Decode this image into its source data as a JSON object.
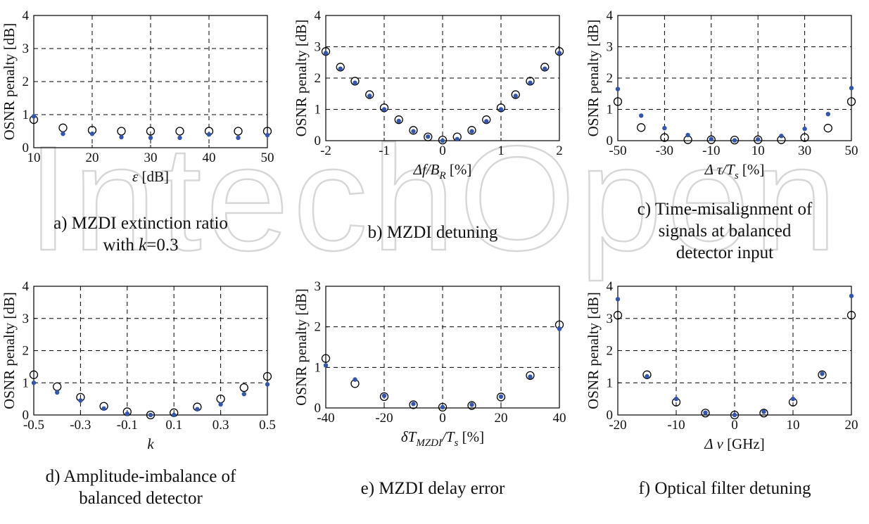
{
  "watermark_text": "IntechOpen",
  "colors": {
    "series_filled": "#3355aa",
    "series_open": "#000000",
    "grid": "#000000"
  },
  "chart_data": [
    {
      "type": "scatter",
      "panel": "a",
      "ylabel": "OSNR penalty [dB]",
      "xlabel": {
        "symbol": "ε",
        "sub": "",
        "unit": " [dB]"
      },
      "xlim": [
        10,
        50
      ],
      "ylim": [
        0,
        4
      ],
      "xticks": [
        10,
        20,
        30,
        40,
        50
      ],
      "yticks": [
        0,
        1,
        2,
        3,
        4
      ],
      "grid": true,
      "series": [
        {
          "marker": "open-circle",
          "x": [
            10,
            15,
            20,
            25,
            30,
            35,
            40,
            45,
            50
          ],
          "y": [
            0.85,
            0.6,
            0.53,
            0.5,
            0.5,
            0.5,
            0.5,
            0.5,
            0.5
          ]
        },
        {
          "marker": "filled-dot",
          "x": [
            10,
            15,
            20,
            25,
            30,
            35,
            40,
            45,
            50
          ],
          "y": [
            0.95,
            0.42,
            0.42,
            0.32,
            0.3,
            0.3,
            0.4,
            0.3,
            0.38
          ]
        }
      ],
      "caption_lines": [
        "a) MZDI extinction ratio",
        "with k=0.3"
      ]
    },
    {
      "type": "scatter",
      "panel": "b",
      "ylabel": "OSNR penalty [dB]",
      "xlabel": {
        "symbol": "Δf/B",
        "sub": "R",
        "unit": " [%]"
      },
      "xlim": [
        -2,
        2
      ],
      "ylim": [
        0,
        4
      ],
      "xticks": [
        -2,
        -1,
        0,
        1,
        2
      ],
      "yticks": [
        0,
        1,
        2,
        3,
        4
      ],
      "grid": true,
      "series": [
        {
          "marker": "open-circle",
          "x": [
            -2,
            -1.75,
            -1.5,
            -1.25,
            -1,
            -0.75,
            -0.5,
            -0.25,
            0,
            0.25,
            0.5,
            0.75,
            1,
            1.25,
            1.5,
            1.75,
            2
          ],
          "y": [
            2.85,
            2.35,
            1.9,
            1.47,
            1.05,
            0.67,
            0.33,
            0.12,
            0.02,
            0.12,
            0.33,
            0.67,
            1.05,
            1.47,
            1.9,
            2.35,
            2.85
          ]
        },
        {
          "marker": "filled-dot",
          "x": [
            -2,
            -1.75,
            -1.5,
            -1.25,
            -1,
            -0.75,
            -0.5,
            -0.25,
            0,
            0.25,
            0.5,
            0.75,
            1,
            1.25,
            1.5,
            1.75,
            2
          ],
          "y": [
            2.8,
            2.3,
            1.85,
            1.43,
            1.0,
            0.63,
            0.3,
            0.13,
            0.0,
            0.05,
            0.3,
            0.62,
            1.0,
            1.43,
            1.85,
            2.3,
            2.8
          ]
        }
      ],
      "caption_lines": [
        "b) MZDI detuning"
      ]
    },
    {
      "type": "scatter",
      "panel": "c",
      "ylabel": "OSNR penalty [dB]",
      "xlabel": {
        "symbol": "Δ τ/T",
        "sub": "s",
        "unit": " [%]"
      },
      "xlim": [
        -50,
        50
      ],
      "ylim": [
        0,
        4
      ],
      "xticks": [
        -50,
        -30,
        -10,
        10,
        30,
        50
      ],
      "yticks": [
        0,
        1,
        2,
        3,
        4
      ],
      "grid": true,
      "series": [
        {
          "marker": "open-circle",
          "x": [
            -50,
            -40,
            -30,
            -20,
            -10,
            0,
            10,
            20,
            30,
            40,
            50
          ],
          "y": [
            1.25,
            0.42,
            0.1,
            0.03,
            0.03,
            0.02,
            0.03,
            0.03,
            0.1,
            0.4,
            1.25
          ]
        },
        {
          "marker": "filled-dot",
          "x": [
            -50,
            -40,
            -30,
            -20,
            -10,
            0,
            10,
            20,
            30,
            40,
            50
          ],
          "y": [
            1.65,
            0.8,
            0.4,
            0.18,
            0.05,
            0.01,
            0.04,
            0.15,
            0.38,
            0.85,
            1.68
          ]
        }
      ],
      "caption_lines": [
        "c) Time-misalignment of",
        "signals at balanced",
        "detector input"
      ]
    },
    {
      "type": "scatter",
      "panel": "d",
      "ylabel": "OSNR penalty [dB]",
      "xlabel": {
        "symbol": "k",
        "sub": "",
        "unit": ""
      },
      "xlim": [
        -0.5,
        0.5
      ],
      "ylim": [
        0,
        4
      ],
      "xticks": [
        -0.5,
        -0.3,
        -0.1,
        0.1,
        0.3,
        0.5
      ],
      "yticks": [
        0,
        1,
        2,
        3,
        4
      ],
      "grid": true,
      "series": [
        {
          "marker": "open-circle",
          "x": [
            -0.5,
            -0.4,
            -0.3,
            -0.2,
            -0.1,
            0,
            0.1,
            0.2,
            0.3,
            0.4,
            0.5
          ],
          "y": [
            1.25,
            0.88,
            0.55,
            0.27,
            0.1,
            0.0,
            0.07,
            0.25,
            0.5,
            0.85,
            1.2
          ]
        },
        {
          "marker": "filled-dot",
          "x": [
            -0.5,
            -0.4,
            -0.3,
            -0.2,
            -0.1,
            0,
            0.1,
            0.2,
            0.3,
            0.4,
            0.5
          ],
          "y": [
            1.0,
            0.7,
            0.45,
            0.2,
            0.04,
            0.0,
            0.0,
            0.18,
            0.33,
            0.65,
            0.95
          ]
        }
      ],
      "caption_lines": [
        "d) Amplitude-imbalance of",
        "balanced detector"
      ]
    },
    {
      "type": "scatter",
      "panel": "e",
      "ylabel": "OSNR penalty [dB]",
      "xlabel": {
        "symbol": "δT",
        "sub": "MZDI",
        "mid": "/T",
        "sub2": "s",
        "unit": " [%]"
      },
      "xlim": [
        -40,
        40
      ],
      "ylim": [
        0,
        3
      ],
      "xticks": [
        -40,
        -20,
        0,
        20,
        40
      ],
      "yticks": [
        0,
        1,
        2,
        3
      ],
      "grid": true,
      "series": [
        {
          "marker": "open-circle",
          "x": [
            -40,
            -30,
            -20,
            -10,
            0,
            10,
            20,
            30,
            40
          ],
          "y": [
            1.22,
            0.6,
            0.28,
            0.08,
            0.02,
            0.06,
            0.27,
            0.8,
            2.05
          ]
        },
        {
          "marker": "filled-dot",
          "x": [
            -40,
            -30,
            -20,
            -10,
            0,
            10,
            20,
            30,
            40
          ],
          "y": [
            1.05,
            0.7,
            0.3,
            0.1,
            0.02,
            0.08,
            0.28,
            0.77,
            1.95
          ]
        }
      ],
      "caption_lines": [
        "e) MZDI delay error"
      ]
    },
    {
      "type": "scatter",
      "panel": "f",
      "ylabel": "OSNR penalty [dB]",
      "xlabel": {
        "symbol": "Δ ν",
        "sub": "",
        "unit": " [GHz]"
      },
      "xlim": [
        -20,
        20
      ],
      "ylim": [
        0,
        4
      ],
      "xticks": [
        -20,
        -10,
        0,
        10,
        20
      ],
      "yticks": [
        0,
        1,
        2,
        3,
        4
      ],
      "grid": true,
      "series": [
        {
          "marker": "open-circle",
          "x": [
            -20,
            -15,
            -10,
            -5,
            0,
            5,
            10,
            15,
            20
          ],
          "y": [
            3.1,
            1.25,
            0.4,
            0.06,
            0.0,
            0.06,
            0.4,
            1.25,
            3.1
          ]
        },
        {
          "marker": "filled-dot",
          "x": [
            -20,
            -15,
            -10,
            -5,
            0,
            5,
            10,
            15,
            20
          ],
          "y": [
            3.6,
            1.2,
            0.5,
            0.07,
            0.0,
            0.1,
            0.5,
            1.28,
            3.7
          ]
        }
      ],
      "caption_lines": [
        "f) Optical filter detuning"
      ]
    }
  ]
}
